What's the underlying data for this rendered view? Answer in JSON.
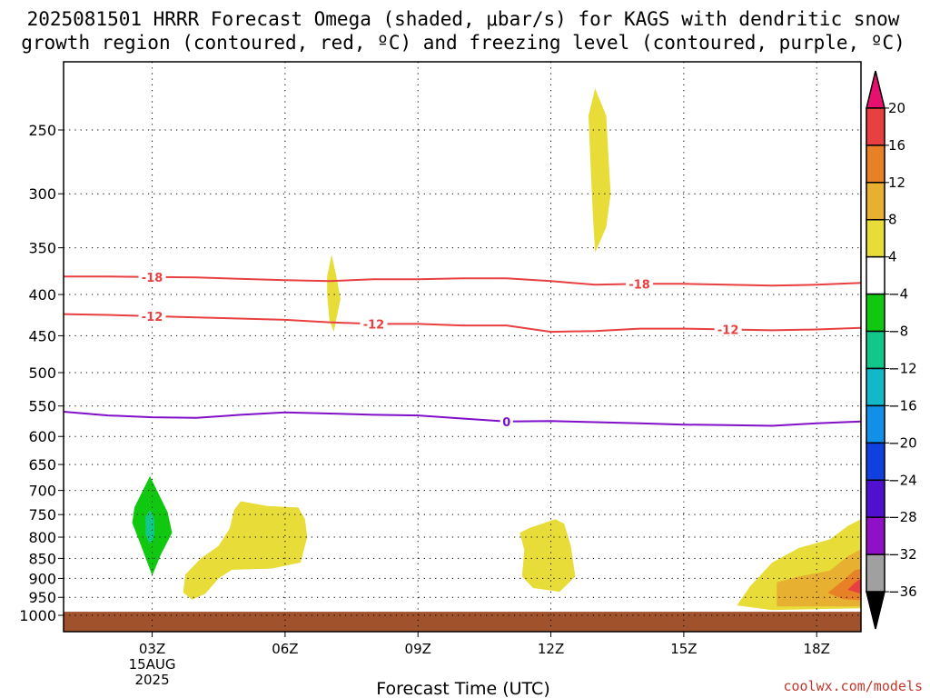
{
  "header": {
    "title_line1": "2025081501 HRRR Forecast Omega (shaded, μbar/s) for KAGS with dendritic snow",
    "title_line2": "growth region (contoured, red, ºC) and freezing level (contoured, purple, ºC)"
  },
  "footer": {
    "credit": "coolwx.com/models"
  },
  "chart_data": {
    "type": "time-height",
    "xlabel": "Forecast Time (UTC)",
    "x_ticks": [
      {
        "hour": 3,
        "label": "03Z",
        "sub": [
          "15AUG",
          "2025"
        ]
      },
      {
        "hour": 6,
        "label": "06Z",
        "sub": []
      },
      {
        "hour": 9,
        "label": "09Z",
        "sub": []
      },
      {
        "hour": 12,
        "label": "12Z",
        "sub": []
      },
      {
        "hour": 15,
        "label": "15Z",
        "sub": []
      },
      {
        "hour": 18,
        "label": "18Z",
        "sub": []
      }
    ],
    "xlim": [
      1,
      19
    ],
    "ylim": [
      1000,
      200
    ],
    "y_scale": "log-pressure",
    "y_ticks": [
      250,
      300,
      350,
      400,
      450,
      500,
      550,
      600,
      650,
      700,
      750,
      800,
      850,
      900,
      950,
      1000
    ],
    "grid": true,
    "terrain_top_hpa": 990,
    "colorbar": {
      "labels": [
        "20",
        "16",
        "12",
        "8",
        "4",
        "−4",
        "−8",
        "−12",
        "−16",
        "−20",
        "−24",
        "−28",
        "−32",
        "−36"
      ],
      "colors": [
        "#e8106f",
        "#e84040",
        "#e88026",
        "#e8b030",
        "#e8dc38",
        "#ffffff",
        "#10c810",
        "#10c88a",
        "#10b8c8",
        "#1090e8",
        "#1040e0",
        "#5010d0",
        "#9010c8",
        "#a0a0a0",
        "#000000"
      ]
    },
    "contours": [
      {
        "value": "-18",
        "color": "#e84040",
        "points": [
          [
            1,
            380
          ],
          [
            2,
            380
          ],
          [
            4,
            381
          ],
          [
            6,
            384
          ],
          [
            7,
            385
          ],
          [
            8,
            383
          ],
          [
            9,
            383
          ],
          [
            10,
            382
          ],
          [
            11,
            382
          ],
          [
            12,
            385
          ],
          [
            13,
            389
          ],
          [
            14,
            388
          ],
          [
            15,
            388
          ],
          [
            16,
            389
          ],
          [
            17,
            390
          ],
          [
            18,
            389
          ],
          [
            19,
            387
          ]
        ],
        "label_hours": [
          3,
          14
        ]
      },
      {
        "value": "-12",
        "color": "#e84040",
        "points": [
          [
            1,
            423
          ],
          [
            2,
            424
          ],
          [
            4,
            427
          ],
          [
            6,
            430
          ],
          [
            7,
            433
          ],
          [
            8,
            435
          ],
          [
            9,
            435
          ],
          [
            10,
            437
          ],
          [
            11,
            437
          ],
          [
            12,
            445
          ],
          [
            13,
            444
          ],
          [
            14,
            441
          ],
          [
            15,
            441
          ],
          [
            16,
            442
          ],
          [
            17,
            443
          ],
          [
            18,
            442
          ],
          [
            19,
            440
          ]
        ],
        "label_hours": [
          3,
          8,
          16
        ]
      },
      {
        "value": "0",
        "color": "#8010c8",
        "points": [
          [
            1,
            559
          ],
          [
            2,
            565
          ],
          [
            3,
            568
          ],
          [
            4,
            569
          ],
          [
            5,
            564
          ],
          [
            6,
            560
          ],
          [
            7,
            562
          ],
          [
            8,
            564
          ],
          [
            9,
            565
          ],
          [
            10,
            570
          ],
          [
            11,
            575
          ],
          [
            12,
            574
          ],
          [
            13,
            576
          ],
          [
            14,
            578
          ],
          [
            15,
            580
          ],
          [
            16,
            581
          ],
          [
            17,
            582
          ],
          [
            18,
            578
          ],
          [
            19,
            575
          ]
        ],
        "label_hours": [
          11
        ]
      }
    ],
    "regions": [
      {
        "value": 4,
        "color": "#e8dc38",
        "points": [
          [
            13.0,
            222
          ],
          [
            13.25,
            240
          ],
          [
            13.3,
            270
          ],
          [
            13.35,
            300
          ],
          [
            13.25,
            330
          ],
          [
            13.0,
            355
          ],
          [
            12.95,
            320
          ],
          [
            12.9,
            280
          ],
          [
            12.85,
            240
          ]
        ]
      },
      {
        "value": 4,
        "color": "#e8dc38",
        "points": [
          [
            7.05,
            357
          ],
          [
            7.15,
            378
          ],
          [
            7.25,
            405
          ],
          [
            7.1,
            445
          ],
          [
            7.0,
            430
          ],
          [
            6.95,
            400
          ],
          [
            6.95,
            380
          ]
        ]
      },
      {
        "value": -8,
        "color": "#10c810",
        "points": [
          [
            2.95,
            672
          ],
          [
            3.35,
            745
          ],
          [
            3.45,
            790
          ],
          [
            3.2,
            840
          ],
          [
            3.0,
            893
          ],
          [
            2.75,
            820
          ],
          [
            2.55,
            768
          ],
          [
            2.6,
            735
          ]
        ]
      },
      {
        "value": -12,
        "color": "#10c88a",
        "points": [
          [
            2.95,
            740
          ],
          [
            3.05,
            760
          ],
          [
            3.05,
            800
          ],
          [
            2.95,
            815
          ],
          [
            2.85,
            795
          ],
          [
            2.85,
            755
          ]
        ]
      },
      {
        "value": 4,
        "color": "#e8dc38",
        "points": [
          [
            5.0,
            722
          ],
          [
            5.6,
            732
          ],
          [
            6.3,
            735
          ],
          [
            6.45,
            760
          ],
          [
            6.5,
            800
          ],
          [
            6.35,
            860
          ],
          [
            5.7,
            875
          ],
          [
            4.8,
            878
          ],
          [
            4.5,
            900
          ],
          [
            4.2,
            940
          ],
          [
            3.9,
            956
          ],
          [
            3.7,
            937
          ],
          [
            3.75,
            890
          ],
          [
            4.1,
            850
          ],
          [
            4.5,
            820
          ],
          [
            4.75,
            780
          ],
          [
            4.85,
            740
          ]
        ]
      },
      {
        "value": 4,
        "color": "#e8dc38",
        "points": [
          [
            11.5,
            780
          ],
          [
            12.1,
            760
          ],
          [
            12.3,
            770
          ],
          [
            12.45,
            820
          ],
          [
            12.55,
            895
          ],
          [
            12.2,
            935
          ],
          [
            11.6,
            925
          ],
          [
            11.35,
            895
          ],
          [
            11.4,
            830
          ],
          [
            11.3,
            790
          ]
        ]
      },
      {
        "value": 4,
        "color": "#e8dc38",
        "points": [
          [
            19.0,
            760
          ],
          [
            19.0,
            980
          ],
          [
            17.0,
            985
          ],
          [
            16.2,
            972
          ],
          [
            16.5,
            920
          ],
          [
            17.0,
            860
          ],
          [
            17.6,
            825
          ],
          [
            18.3,
            805
          ],
          [
            18.7,
            775
          ]
        ]
      },
      {
        "value": 8,
        "color": "#e8b030",
        "points": [
          [
            19.0,
            828
          ],
          [
            19.0,
            975
          ],
          [
            17.1,
            975
          ],
          [
            17.1,
            910
          ],
          [
            17.6,
            895
          ],
          [
            18.3,
            880
          ],
          [
            18.7,
            845
          ]
        ]
      },
      {
        "value": 12,
        "color": "#e88026",
        "points": [
          [
            19.0,
            875
          ],
          [
            19.0,
            958
          ],
          [
            18.6,
            955
          ],
          [
            18.25,
            938
          ],
          [
            18.6,
            905
          ],
          [
            18.85,
            880
          ]
        ]
      },
      {
        "value": 16,
        "color": "#e84040",
        "points": [
          [
            19.0,
            900
          ],
          [
            19.0,
            940
          ],
          [
            18.7,
            930
          ],
          [
            18.85,
            912
          ]
        ]
      }
    ]
  }
}
